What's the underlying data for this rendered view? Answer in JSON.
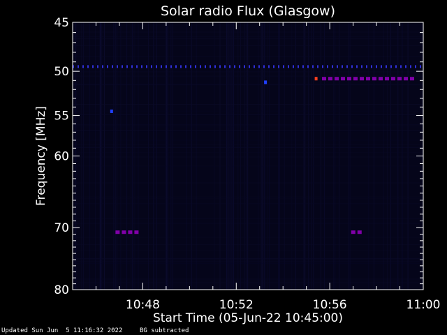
{
  "chart_data": {
    "type": "heatmap",
    "title": "Solar radio Flux (Glasgow)",
    "xlabel": "Start Time (05-Jun-22 10:45:00)",
    "ylabel": "Frequency [MHz]",
    "xlim": [
      "10:45:00",
      "11:00:00"
    ],
    "ylim": [
      45,
      80
    ],
    "y_scale": "log",
    "x_ticks": [
      "10:48",
      "10:52",
      "10:56",
      "11:00"
    ],
    "y_ticks": [
      45,
      50,
      55,
      60,
      70,
      80
    ],
    "colors": {
      "background": "#05051a",
      "baseline_band": "#3030d8",
      "burst_strong": "#8000a8",
      "burst_peak": "#ff4020",
      "spot": "#2040ff"
    },
    "features": [
      {
        "kind": "band",
        "freq_mhz": 49.5,
        "time_start": "10:45:00",
        "time_end": "11:00:00",
        "level": "baseline_band"
      },
      {
        "kind": "band",
        "freq_mhz": 50.8,
        "time_start": "10:55:40",
        "time_end": "10:59:40",
        "level": "burst_strong"
      },
      {
        "kind": "spot",
        "freq_mhz": 50.8,
        "time": "10:55:25",
        "level": "burst_peak"
      },
      {
        "kind": "band",
        "freq_mhz": 70.7,
        "time_start": "10:46:50",
        "time_end": "10:47:50",
        "level": "burst_strong"
      },
      {
        "kind": "band",
        "freq_mhz": 70.7,
        "time_start": "10:56:55",
        "time_end": "10:57:20",
        "level": "burst_strong"
      },
      {
        "kind": "spot",
        "freq_mhz": 54.5,
        "time": "10:46:40",
        "level": "spot"
      },
      {
        "kind": "spot",
        "freq_mhz": 51.2,
        "time": "10:53:15",
        "level": "spot"
      }
    ]
  },
  "footer": {
    "updated": "Updated Sun Jun  5 11:16:32 2022",
    "note": "BG subtracted"
  }
}
